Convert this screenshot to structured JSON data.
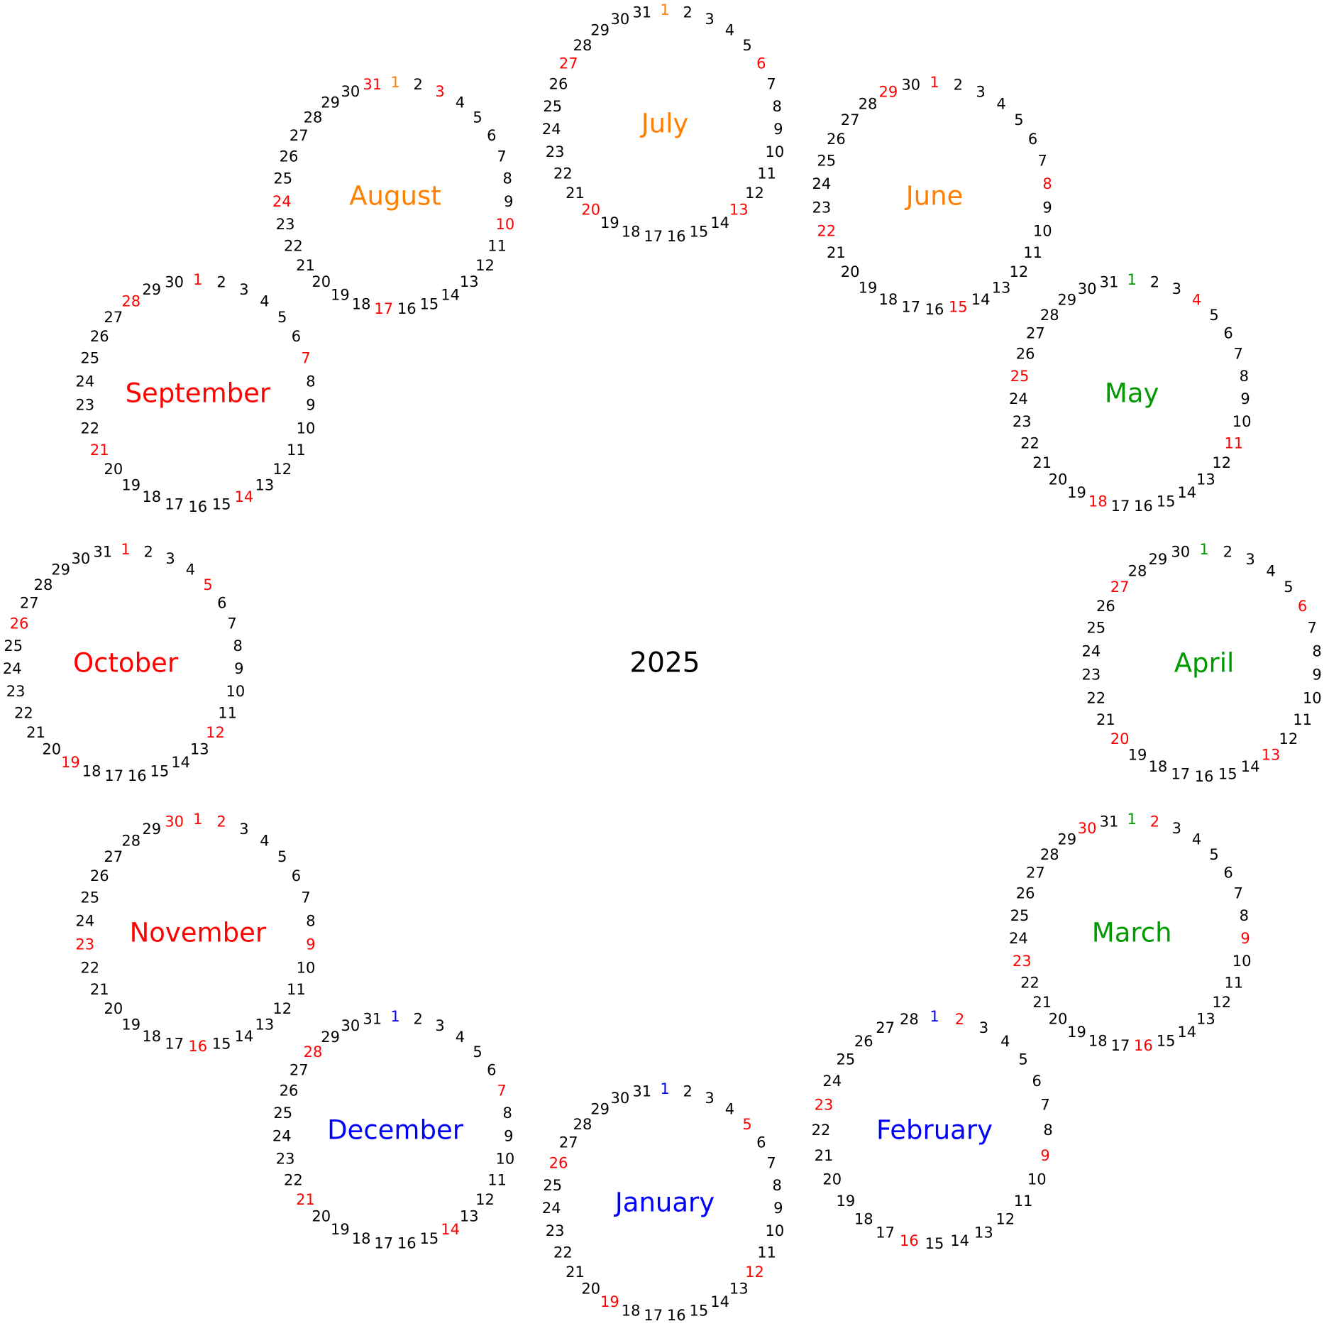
{
  "year": "2025",
  "colors": {
    "default_day": "#000000",
    "sunday": "#ff0000",
    "winter": "#0000ff",
    "spring": "#009900",
    "summer": "#ff8000",
    "autumn": "#ff0000"
  },
  "months": [
    {
      "key": "january",
      "name": "January",
      "days": 31,
      "season": "winter",
      "sundays": [
        5,
        12,
        19,
        26
      ]
    },
    {
      "key": "february",
      "name": "February",
      "days": 28,
      "season": "winter",
      "sundays": [
        2,
        9,
        16,
        23
      ]
    },
    {
      "key": "march",
      "name": "March",
      "days": 31,
      "season": "spring",
      "sundays": [
        2,
        9,
        16,
        23,
        30
      ]
    },
    {
      "key": "april",
      "name": "April",
      "days": 30,
      "season": "spring",
      "sundays": [
        6,
        13,
        20,
        27
      ]
    },
    {
      "key": "may",
      "name": "May",
      "days": 31,
      "season": "spring",
      "sundays": [
        4,
        11,
        18,
        25
      ]
    },
    {
      "key": "june",
      "name": "June",
      "days": 30,
      "season": "summer",
      "sundays": [
        1,
        8,
        15,
        22,
        29
      ]
    },
    {
      "key": "july",
      "name": "July",
      "days": 31,
      "season": "summer",
      "sundays": [
        6,
        13,
        20,
        27
      ]
    },
    {
      "key": "august",
      "name": "August",
      "days": 31,
      "season": "summer",
      "sundays": [
        3,
        10,
        17,
        24,
        31
      ]
    },
    {
      "key": "september",
      "name": "September",
      "days": 30,
      "season": "autumn",
      "sundays": [
        7,
        14,
        21,
        28
      ]
    },
    {
      "key": "october",
      "name": "October",
      "days": 31,
      "season": "autumn",
      "sundays": [
        5,
        12,
        19,
        26
      ]
    },
    {
      "key": "november",
      "name": "November",
      "days": 30,
      "season": "autumn",
      "sundays": [
        2,
        9,
        16,
        23,
        30
      ]
    },
    {
      "key": "december",
      "name": "December",
      "days": 31,
      "season": "winter",
      "sundays": [
        7,
        14,
        21,
        28
      ]
    }
  ]
}
